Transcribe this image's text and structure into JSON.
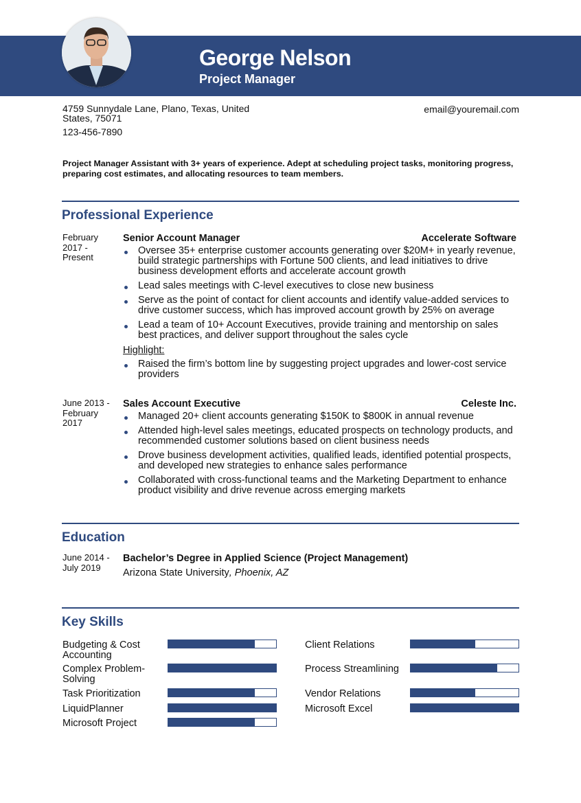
{
  "header": {
    "name": "George Nelson",
    "title": "Project Manager",
    "photo_icon": "profile-photo"
  },
  "contact": {
    "address": "4759 Sunnydale Lane, Plano, Texas, United States, 75071",
    "phone": "123-456-7890",
    "email": "email@youremail.com"
  },
  "summary": "Project Manager Assistant with 3+ years of experience. Adept at scheduling project tasks, monitoring progress, preparing cost estimates, and allocating resources to team members.",
  "experience": {
    "heading": "Professional Experience",
    "jobs": [
      {
        "date": "February 2017 - Present",
        "title": "Senior Account Manager",
        "company": "Accelerate Software",
        "bullets": [
          "Oversee 35+ enterprise customer accounts generating over $20M+ in yearly revenue, build strategic partnerships with Fortune 500 clients, and lead initiatives to drive business development efforts and accelerate account growth",
          "Lead sales meetings with C-level executives to close new business",
          "Serve as the point of contact for client accounts and identify value-added services to drive customer success, which has improved account growth by 25% on average",
          "Lead a team of 10+ Account Executives, provide training and mentorship on sales best practices, and deliver support throughout the sales cycle"
        ],
        "highlight_label": "Highlight:",
        "highlights": [
          "Raised the firm’s bottom line by suggesting project upgrades and lower-cost service providers"
        ]
      },
      {
        "date": "June 2013 - February 2017",
        "title": "Sales Account Executive",
        "company": "Celeste Inc.",
        "bullets": [
          "Managed 20+ client accounts generating $150K to $800K in annual revenue",
          "Attended high-level sales meetings, educated prospects on technology products, and recommended customer solutions based on client business needs",
          "Drove business development activities, qualified leads, identified potential prospects, and developed new strategies to enhance sales performance",
          "Collaborated with cross-functional teams and the Marketing Department to enhance product visibility and drive revenue across emerging markets"
        ]
      }
    ]
  },
  "education": {
    "heading": "Education",
    "date": "June 2014 - July 2019",
    "degree": "Bachelor’s Degree in Applied Science (Project Management)",
    "school": "Arizona State University",
    "location": ", Phoenix, AZ"
  },
  "skills": {
    "heading": "Key Skills",
    "accent": "#2f4a7f",
    "left": [
      {
        "name": "Budgeting & Cost Accounting",
        "level": 80
      },
      {
        "name": "Complex Problem-Solving",
        "level": 100
      },
      {
        "name": "Task Prioritization",
        "level": 80
      },
      {
        "name": "LiquidPlanner",
        "level": 100
      },
      {
        "name": "Microsoft Project",
        "level": 80
      }
    ],
    "right": [
      {
        "name": "Client Relations",
        "level": 60
      },
      {
        "name": "Process Streamlining",
        "level": 80
      },
      {
        "name": "Vendor Relations",
        "level": 60
      },
      {
        "name": "Microsoft Excel",
        "level": 100
      }
    ]
  }
}
